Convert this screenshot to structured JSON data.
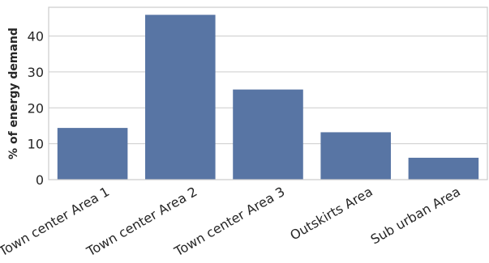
{
  "chart_data": {
    "type": "bar",
    "categories": [
      "Town center Area 1",
      "Town center Area 2",
      "Town center Area 3",
      "Outskirts Area",
      "Sub urban Area"
    ],
    "values": [
      14.4,
      45.9,
      25.1,
      13.2,
      6.1
    ],
    "title": "",
    "xlabel": "",
    "ylabel": "% of energy demand",
    "ylim": [
      0,
      48
    ],
    "yticks": [
      0,
      10,
      20,
      30,
      40
    ],
    "grid": "horizontal",
    "bar_color": "#5875a4",
    "background_color": "#ffffff",
    "grid_color": "#cccccc"
  }
}
